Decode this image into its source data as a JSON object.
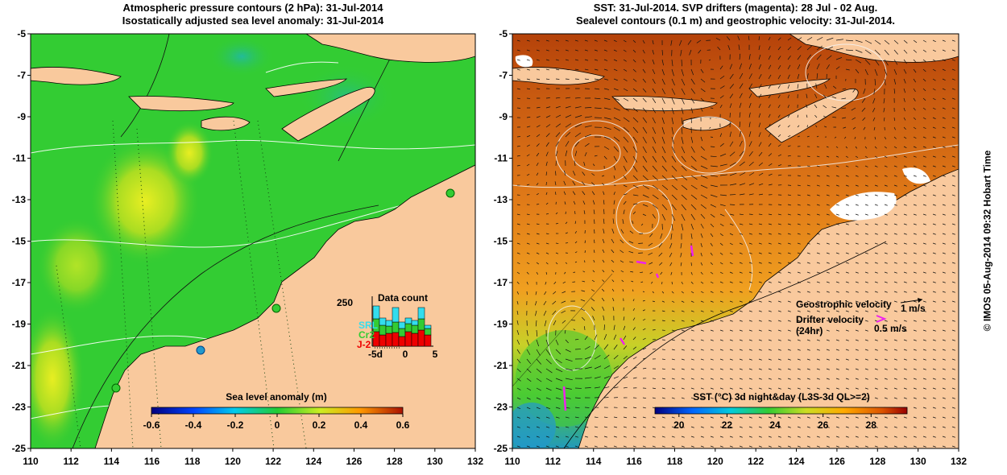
{
  "left_panel": {
    "title_line1": "Atmospheric pressure contours (2 hPa): 31-Jul-2014",
    "title_line2": "Isostatically adjusted sea level anomaly: 31-Jul-2014",
    "colorbar": {
      "label": "Sea level anomaly (m)",
      "ticks": [
        "-0.6",
        "-0.4",
        "-0.2",
        "0",
        "0.2",
        "0.4",
        "0.6"
      ],
      "range": [
        -0.6,
        0.6
      ]
    },
    "data_count": {
      "title": "Data count",
      "max_label": "250",
      "legend": [
        {
          "name": "SRL",
          "color": "#33ddee"
        },
        {
          "name": "Cr2",
          "color": "#33cc33"
        },
        {
          "name": "J-2",
          "color": "#ee0000"
        }
      ],
      "xticks": [
        "-5d",
        "0",
        "5"
      ]
    }
  },
  "right_panel": {
    "title_line1": "SST: 31-Jul-2014. SVP drifters (magenta): 28 Jul - 02 Aug.",
    "title_line2": "Sealevel contours (0.1 m) and geostrophic velocity: 31-Jul-2014.",
    "colorbar": {
      "label": "SST (°C) 3d night&day (L3S-3d QL>=2)",
      "ticks": [
        "20",
        "22",
        "24",
        "26",
        "28"
      ],
      "range": [
        19,
        29.5
      ]
    },
    "legend": {
      "geo_label": "Geostrophic velocity",
      "geo_scale": "1 m/s",
      "drifter_label": "Drifter velocity",
      "drifter_sub": "(24hr)",
      "drifter_scale": "0.5 m/s"
    }
  },
  "axes": {
    "y_ticks": [
      "-5",
      "-7",
      "-9",
      "-11",
      "-13",
      "-15",
      "-17",
      "-19",
      "-21",
      "-23",
      "-25"
    ],
    "x_ticks": [
      "110",
      "112",
      "114",
      "116",
      "118",
      "120",
      "122",
      "124",
      "126",
      "128",
      "130",
      "132"
    ],
    "lon_range": [
      110,
      132
    ],
    "lat_range": [
      -25,
      -5
    ]
  },
  "credit": "© IMOS 05-Aug-2014 09:32 Hobart Time",
  "colors": {
    "land": "#f9c99d",
    "sea_green": "#33cc33",
    "sst_warm": "#c8500a"
  }
}
